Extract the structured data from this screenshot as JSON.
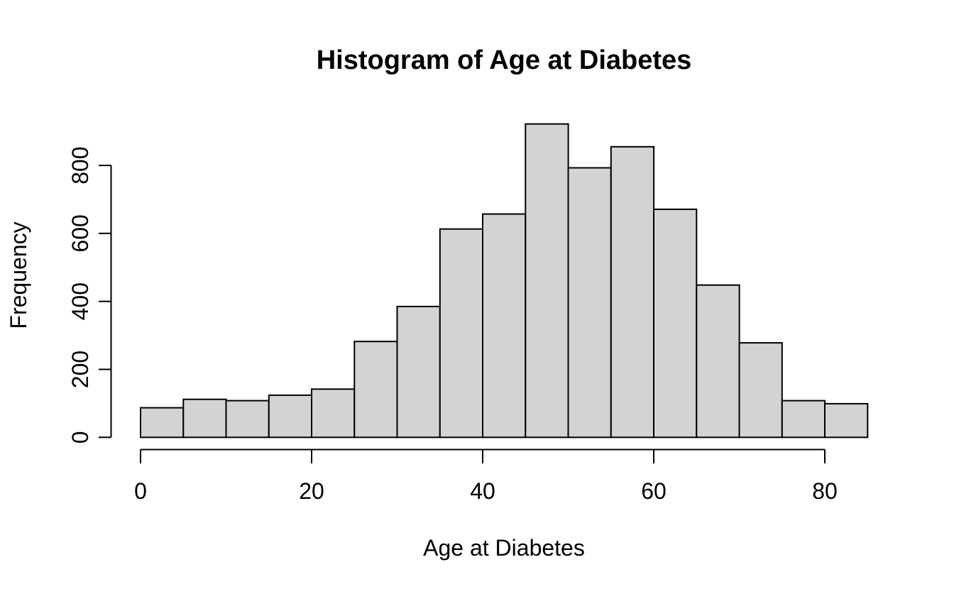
{
  "chart_data": {
    "type": "bar",
    "subtype": "histogram",
    "title": "Histogram of Age at Diabetes",
    "xlabel": "Age at Diabetes",
    "ylabel": "Frequency",
    "bin_edges": [
      0,
      5,
      10,
      15,
      20,
      25,
      30,
      35,
      40,
      45,
      50,
      55,
      60,
      65,
      70,
      75,
      80,
      85
    ],
    "counts": [
      87,
      112,
      108,
      124,
      142,
      282,
      385,
      613,
      657,
      922,
      793,
      855,
      671,
      448,
      278,
      108,
      99
    ],
    "x_ticks": [
      0,
      20,
      40,
      60,
      80
    ],
    "x_tick_labels": [
      "0",
      "20",
      "40",
      "60",
      "80"
    ],
    "y_ticks": [
      0,
      200,
      400,
      600,
      800
    ],
    "y_tick_labels": [
      "0",
      "200",
      "400",
      "600",
      "800"
    ],
    "xlim": [
      0,
      85
    ],
    "ylim": [
      0,
      922
    ],
    "grid": false,
    "legend": false,
    "bar_fill": "#d3d3d3",
    "bar_border": "#000000",
    "axis_color": "#000000",
    "background": "#ffffff"
  }
}
